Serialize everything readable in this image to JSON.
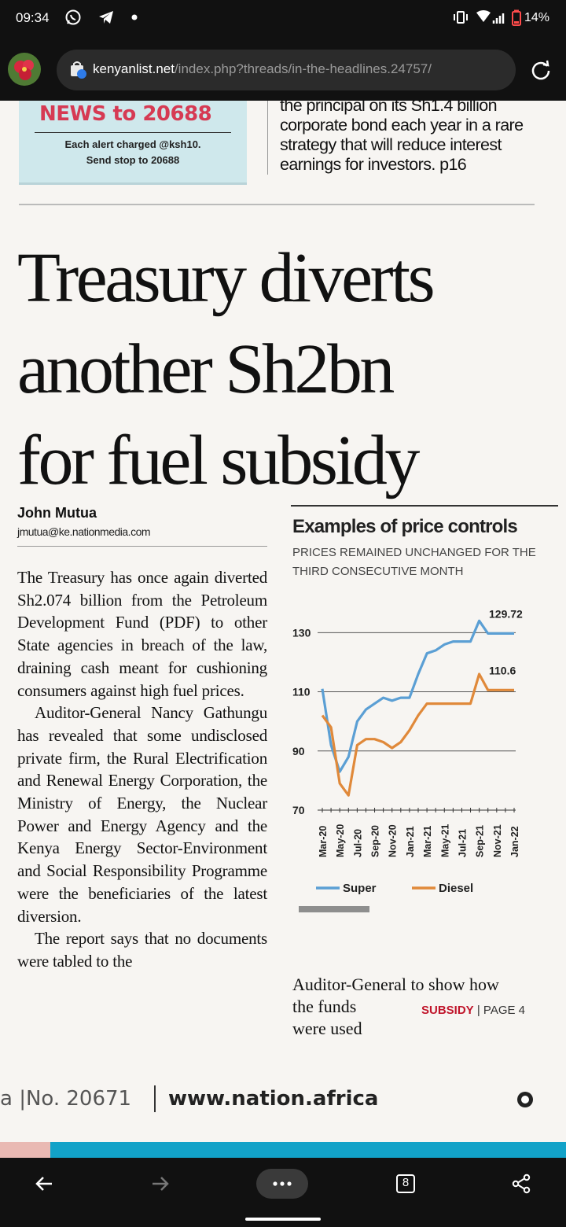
{
  "status": {
    "time": "09:34",
    "battery": "14%"
  },
  "browser": {
    "url_host": "kenyanlist.net",
    "url_path": "/index.php?threads/in-the-headlines.24757/",
    "tab_count": "8"
  },
  "promo": {
    "big": "NEWS to 20688",
    "line1": "Each alert charged @ksh10.",
    "line2": "Send stop to 20688"
  },
  "teaser": {
    "lines": [
      "the principal on its Sh1.4 billion",
      "corporate bond each year in a rare",
      "strategy that will reduce interest",
      "earnings for investors. p16"
    ]
  },
  "article": {
    "headline_lines": [
      "Treasury diverts",
      "another Sh2bn",
      "for fuel subsidy"
    ],
    "author": "John Mutua",
    "email": "jmutua@ke.nationmedia.com",
    "paragraphs": [
      "The Treasury has once again diverted Sh2.074 billion from the Petroleum Development Fund (PDF) to other State agencies in breach of the law, draining cash meant for cushioning consumers against high fuel prices.",
      "Auditor-General Nancy Gathungu has revealed that some undisclosed private firm, the Rural Electrification and Renewal Energy Corporation, the Ministry of Energy, the Nuclear Power and Energy Agency and the Kenya Energy Sector-Environment and Social Responsibility Programme were the beneficiaries of the latest diversion.",
      "The report says that no documents were tabled to the"
    ]
  },
  "chart_box": {
    "title": "Examples of price controls",
    "subtitle": "PRICES REMAINED UNCHANGED FOR THE THIRD CONSECUTIVE MONTH"
  },
  "chart_data": {
    "type": "line",
    "title": "Examples of price controls",
    "subtitle": "PRICES REMAINED UNCHANGED FOR THE THIRD CONSECUTIVE MONTH",
    "x": [
      "Mar-20",
      "Apr-20",
      "May-20",
      "Jun-20",
      "Jul-20",
      "Aug-20",
      "Sep-20",
      "Oct-20",
      "Nov-20",
      "Dec-20",
      "Jan-21",
      "Feb-21",
      "Mar-21",
      "Apr-21",
      "May-21",
      "Jun-21",
      "Jul-21",
      "Aug-21",
      "Sep-21",
      "Oct-21",
      "Nov-21",
      "Dec-21",
      "Jan-22"
    ],
    "x_tick_labels": [
      "Mar-20",
      "May-20",
      "Jul-20",
      "Sep-20",
      "Nov-20",
      "Jan-21",
      "Mar-21",
      "May-21",
      "Jul-21",
      "Sep-21",
      "Nov-21",
      "Jan-22"
    ],
    "yticks": [
      70,
      90,
      110,
      130
    ],
    "ylim": [
      70,
      137
    ],
    "grid": true,
    "legend_position": "bottom",
    "series": [
      {
        "name": "Super",
        "color": "#5b9fd4",
        "values": [
          111,
          92,
          83,
          88,
          100,
          104,
          106,
          108,
          107,
          108,
          108,
          116,
          123,
          124,
          126,
          127,
          127,
          127,
          134,
          129.72,
          129.72,
          129.72,
          129.72
        ]
      },
      {
        "name": "Diesel",
        "color": "#e0893a",
        "values": [
          102,
          98,
          79,
          75,
          92,
          94,
          94,
          93,
          91,
          93,
          97,
          102,
          106,
          106,
          106,
          106,
          106,
          106,
          116,
          110.6,
          110.6,
          110.6,
          110.6
        ]
      }
    ],
    "annotations": [
      "129.72",
      "110.6"
    ]
  },
  "right_footer": {
    "line1": "Auditor-General to show how",
    "line2a": "the funds",
    "tag": "SUBSIDY",
    "page": "PAGE 4",
    "line3": "were used"
  },
  "masthead_footer": {
    "issue": "a |No. 20671",
    "website": "www.nation.africa"
  }
}
